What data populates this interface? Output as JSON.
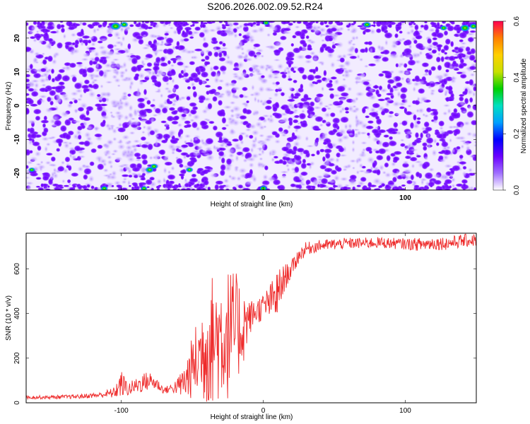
{
  "title": "S206.2026.002.09.52.R24",
  "chart_data": [
    {
      "type": "heatmap",
      "xlabel": "Height of straight line (km)",
      "ylabel": "Frequency (Hz)",
      "xlim": [
        -167,
        150
      ],
      "ylim": [
        -25,
        25
      ],
      "x_ticks": [
        "-100",
        "0",
        "100"
      ],
      "y_ticks": [
        "-20",
        "-10",
        "0",
        "10",
        "20"
      ],
      "colorbar": {
        "label": "Normalized spectral amplitude",
        "range": [
          0.0,
          0.6
        ],
        "ticks": [
          "0.0",
          "0.2",
          "0.4",
          "0.6"
        ],
        "colormap": [
          "#ffffff",
          "#a070ff",
          "#6a00ff",
          "#0000ff",
          "#00a0ff",
          "#00e0c0",
          "#00d000",
          "#c8e000",
          "#ffd000",
          "#ff8000",
          "#ff0050"
        ]
      },
      "hotspots": [
        {
          "x": -104,
          "y": 23.5,
          "amplitude": 0.5
        },
        {
          "x": -98,
          "y": 24,
          "amplitude": 0.3
        },
        {
          "x": 2,
          "y": 24.5,
          "amplitude": 0.2
        },
        {
          "x": 73,
          "y": 24,
          "amplitude": 0.3
        },
        {
          "x": 127,
          "y": 23,
          "amplitude": 0.25
        },
        {
          "x": 142,
          "y": 23,
          "amplitude": 0.45
        },
        {
          "x": 148,
          "y": 23.5,
          "amplitude": 0.3
        },
        {
          "x": -80,
          "y": -19,
          "amplitude": 0.35
        },
        {
          "x": -77,
          "y": -18,
          "amplitude": 0.3
        },
        {
          "x": -52,
          "y": -19,
          "amplitude": 0.25
        },
        {
          "x": -112,
          "y": -24.5,
          "amplitude": 0.25
        },
        {
          "x": -84,
          "y": -24.5,
          "amplitude": 0.2
        },
        {
          "x": 0,
          "y": -24.5,
          "amplitude": 0.3
        },
        {
          "x": -163,
          "y": -19,
          "amplitude": 0.2
        }
      ]
    },
    {
      "type": "line",
      "xlabel": "Height of straight line (km)",
      "ylabel": "SNR (10 * v/v)",
      "xlim": [
        -167,
        150
      ],
      "ylim": [
        0,
        760
      ],
      "x_ticks": [
        "-100",
        "0",
        "100"
      ],
      "y_ticks": [
        "0",
        "200",
        "400",
        "600"
      ],
      "series": [
        {
          "color": "#ee2a2a",
          "x": [
            -167,
            -150,
            -130,
            -115,
            -105,
            -100,
            -95,
            -90,
            -85,
            -80,
            -75,
            -70,
            -65,
            -60,
            -55,
            -50,
            -45,
            -40,
            -35,
            -30,
            -25,
            -20,
            -15,
            -10,
            -5,
            0,
            5,
            10,
            15,
            20,
            25,
            30,
            40,
            50,
            60,
            70,
            80,
            90,
            100,
            110,
            120,
            130,
            140,
            150
          ],
          "y": [
            25,
            25,
            28,
            35,
            45,
            85,
            60,
            75,
            90,
            100,
            85,
            55,
            65,
            75,
            95,
            160,
            210,
            260,
            290,
            300,
            310,
            330,
            340,
            380,
            410,
            430,
            455,
            480,
            560,
            600,
            660,
            690,
            705,
            710,
            715,
            715,
            718,
            715,
            712,
            710,
            715,
            715,
            725,
            730
          ],
          "spread": [
            8,
            8,
            10,
            12,
            25,
            60,
            30,
            35,
            45,
            40,
            30,
            15,
            20,
            40,
            90,
            140,
            200,
            280,
            300,
            300,
            300,
            260,
            200,
            80,
            60,
            60,
            80,
            120,
            60,
            40,
            35,
            30,
            25,
            25,
            25,
            25,
            25,
            25,
            25,
            30,
            30,
            30,
            30,
            30
          ]
        }
      ]
    }
  ]
}
